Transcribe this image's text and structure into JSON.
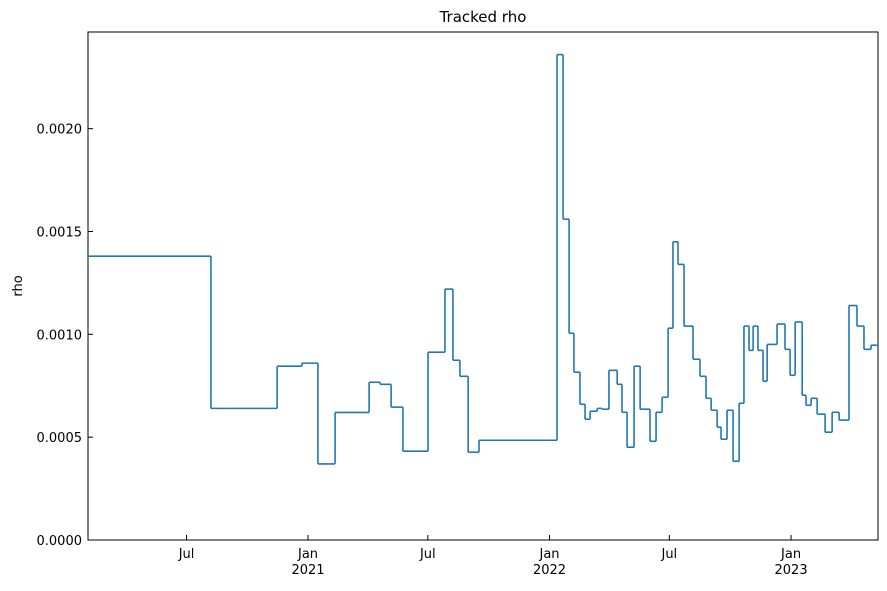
{
  "chart_data": {
    "type": "line",
    "title": "Tracked rho",
    "y_label": "rho",
    "drawstyle": "steps-post",
    "color": "#1f77b4",
    "x": [
      2020.089,
      2020.598,
      2020.872,
      2020.975,
      2021.041,
      2021.112,
      2021.253,
      2021.298,
      2021.344,
      2021.393,
      2021.497,
      2021.567,
      2021.6,
      2021.629,
      2021.663,
      2021.708,
      2022.031,
      2022.056,
      2022.081,
      2022.101,
      2022.126,
      2022.147,
      2022.168,
      2022.197,
      2022.217,
      2022.246,
      2022.28,
      2022.3,
      2022.321,
      2022.35,
      2022.375,
      2022.416,
      2022.441,
      2022.466,
      2022.491,
      2022.511,
      2022.532,
      2022.557,
      2022.594,
      2022.623,
      2022.648,
      2022.669,
      2022.694,
      2022.71,
      2022.735,
      2022.76,
      2022.785,
      2022.805,
      2022.826,
      2022.843,
      2022.863,
      2022.884,
      2022.901,
      2022.942,
      2022.975,
      2022.996,
      2023.017,
      2023.046,
      2023.062,
      2023.083,
      2023.108,
      2023.141,
      2023.17,
      2023.199,
      2023.24,
      2023.273,
      2023.302,
      2023.331
    ],
    "values": [
      0.00138,
      0.00064,
      0.000845,
      0.00086,
      0.00037,
      0.00062,
      0.000767,
      0.000757,
      0.000646,
      0.000432,
      0.000913,
      0.00122,
      0.000874,
      0.000796,
      0.000427,
      0.000485,
      0.00236,
      0.00156,
      0.001005,
      0.000816,
      0.00066,
      0.000587,
      0.000626,
      0.00064,
      0.000636,
      0.000825,
      0.000757,
      0.000621,
      0.000451,
      0.000845,
      0.000636,
      0.00048,
      0.000621,
      0.000694,
      0.00103,
      0.00145,
      0.00134,
      0.00104,
      0.000879,
      0.000796,
      0.000689,
      0.000631,
      0.000549,
      0.00049,
      0.000631,
      0.000383,
      0.000665,
      0.00104,
      0.000922,
      0.00104,
      0.000922,
      0.000772,
      0.000951,
      0.00105,
      0.000927,
      0.000801,
      0.00106,
      0.000704,
      0.000655,
      0.000689,
      0.000612,
      0.000524,
      0.000621,
      0.000583,
      0.00114,
      0.00104,
      0.000927,
      0.000947
    ],
    "xlim": [
      2020.089,
      2023.36
    ],
    "xticks": [
      {
        "value": 2020.497,
        "label": "Jul"
      },
      {
        "value": 2021,
        "label": "Jan\n2021"
      },
      {
        "value": 2021.496,
        "label": "Jul"
      },
      {
        "value": 2022,
        "label": "Jan\n2022"
      },
      {
        "value": 2022.496,
        "label": "Jul"
      },
      {
        "value": 2023,
        "label": "Jan\n2023"
      }
    ],
    "ylim": [
      0,
      0.00247
    ],
    "yticks": [
      {
        "value": 0,
        "label": "0.0000"
      },
      0.0005,
      {
        "value": 0.001,
        "label": "0.0010"
      },
      {
        "value": 0.0015,
        "label": "0.0015"
      },
      {
        "value": 0.002,
        "label": "0.0020"
      }
    ]
  }
}
